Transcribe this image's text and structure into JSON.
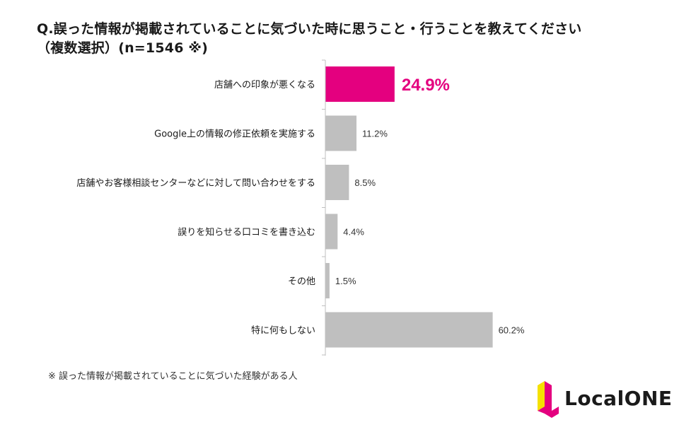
{
  "chart_data": {
    "type": "bar",
    "orientation": "horizontal",
    "title_line1": "Q.誤った情報が掲載されていることに気づいた時に思うこと・行うことを教えてください",
    "title_line2": "（複数選択）(n=1546 ※)",
    "unit": "%",
    "xlim": [
      0,
      100
    ],
    "categories": [
      "店舗への印象が悪くなる",
      "Google上の情報の修正依頼を実施する",
      "店舗やお客様相談センターなどに対して問い合わせをする",
      "誤りを知らせる口コミを書き込む",
      "その他",
      "特に何もしない"
    ],
    "values": [
      24.9,
      11.2,
      8.5,
      4.4,
      1.5,
      60.2
    ],
    "value_labels": [
      "24.9%",
      "11.2%",
      "8.5%",
      "4.4%",
      "1.5%",
      "60.2%"
    ],
    "highlight_index": 0,
    "colors": {
      "highlight": "#e4007f",
      "default": "#bfbfbf",
      "axis": "#bfbfbf"
    }
  },
  "footnote": "※ 誤った情報が掲載されていることに気づいた経験がある人",
  "logo": {
    "text": "LocalONE",
    "colors": {
      "yellow": "#f5e100",
      "magenta": "#e4007f"
    }
  }
}
